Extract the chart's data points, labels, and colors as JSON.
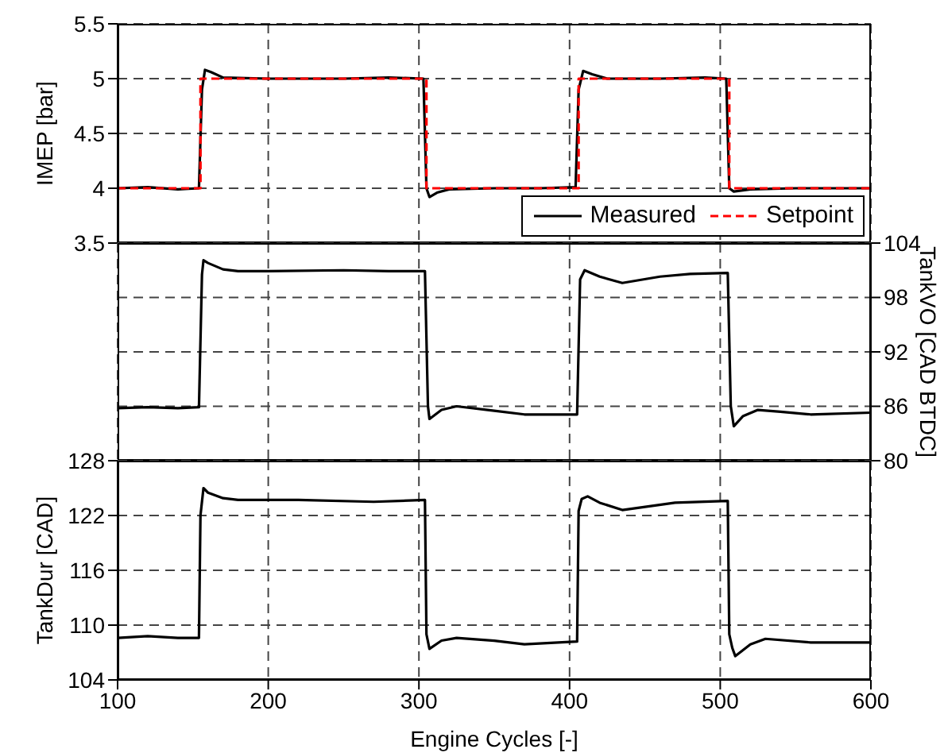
{
  "chart_data": [
    {
      "type": "line",
      "ylabel": "IMEP [bar]",
      "xlim": [
        100,
        600
      ],
      "xticks": [
        100,
        200,
        300,
        400,
        500,
        600
      ],
      "ylim": [
        3.5,
        5.5
      ],
      "yticks": [
        3.5,
        4,
        4.5,
        5,
        5.5
      ],
      "tick_labels": "y",
      "grid": true,
      "legend": "bottom right",
      "series": [
        {
          "name": "Measured",
          "color": "#000000",
          "line_style": "solid",
          "x": [
            100,
            120,
            140,
            154,
            156,
            158,
            162,
            170,
            200,
            250,
            280,
            303,
            305,
            307,
            312,
            320,
            350,
            380,
            404,
            406,
            409,
            415,
            425,
            460,
            490,
            504,
            506,
            509,
            520,
            550,
            600
          ],
          "values": [
            4.0,
            4.01,
            3.99,
            4.0,
            4.9,
            5.08,
            5.06,
            5.01,
            5.0,
            5.0,
            5.01,
            5.0,
            4.0,
            3.92,
            3.96,
            3.99,
            4.0,
            4.0,
            4.01,
            4.9,
            5.07,
            5.04,
            5.0,
            5.0,
            5.01,
            5.0,
            4.0,
            3.97,
            3.99,
            4.0,
            4.0
          ]
        },
        {
          "name": "Setpoint",
          "color": "#ff0000",
          "line_style": "dashed",
          "x": [
            100,
            155,
            155,
            305,
            305,
            406,
            406,
            506,
            506,
            600
          ],
          "values": [
            4,
            4,
            5,
            5,
            4,
            4,
            5,
            5,
            4,
            4
          ]
        }
      ]
    },
    {
      "type": "line",
      "y2label": "TankVO [CAD BTDC]",
      "xlim": [
        100,
        600
      ],
      "xticks": [
        100,
        200,
        300,
        400,
        500,
        600
      ],
      "y2lim": [
        80,
        104
      ],
      "y2ticks": [
        80,
        86,
        92,
        98,
        104
      ],
      "tick_labels": "y",
      "grid": true,
      "series": [
        {
          "color": "#000000",
          "axis": "y2",
          "x": [
            100,
            120,
            140,
            154,
            156,
            157,
            160,
            170,
            180,
            200,
            250,
            280,
            304,
            306,
            307,
            315,
            325,
            350,
            370,
            400,
            405,
            407,
            410,
            420,
            435,
            460,
            480,
            505,
            507,
            509,
            515,
            525,
            540,
            560,
            600
          ],
          "values": [
            85.8,
            85.9,
            85.8,
            85.9,
            100.5,
            102.1,
            101.8,
            101.1,
            100.9,
            100.9,
            101.0,
            100.9,
            100.9,
            86.0,
            84.6,
            85.6,
            86.0,
            85.5,
            85.1,
            85.1,
            85.1,
            100.0,
            101.0,
            100.3,
            99.6,
            100.3,
            100.6,
            100.7,
            86.0,
            83.8,
            84.9,
            85.6,
            85.4,
            85.1,
            85.3
          ]
        }
      ]
    },
    {
      "type": "line",
      "xlabel": "Engine Cycles [-]",
      "ylabel": "TankDur [CAD]",
      "xlim": [
        100,
        600
      ],
      "xticks": [
        100,
        200,
        300,
        400,
        500,
        600
      ],
      "ylim": [
        104,
        128
      ],
      "yticks": [
        104,
        110,
        116,
        122,
        128
      ],
      "grid": true,
      "series": [
        {
          "color": "#000000",
          "x": [
            100,
            120,
            140,
            154,
            155,
            157,
            160,
            170,
            180,
            220,
            270,
            304,
            305,
            307,
            315,
            325,
            350,
            370,
            405,
            406,
            408,
            412,
            420,
            435,
            470,
            505,
            506,
            508,
            510,
            520,
            530,
            560,
            600
          ],
          "values": [
            108.6,
            108.8,
            108.6,
            108.6,
            122.0,
            125.0,
            124.5,
            123.9,
            123.7,
            123.7,
            123.5,
            123.7,
            109.0,
            107.4,
            108.3,
            108.6,
            108.3,
            107.9,
            108.2,
            122.5,
            123.8,
            124.1,
            123.4,
            122.6,
            123.4,
            123.6,
            109.0,
            107.5,
            106.6,
            107.9,
            108.5,
            108.1,
            108.1
          ]
        }
      ]
    }
  ]
}
